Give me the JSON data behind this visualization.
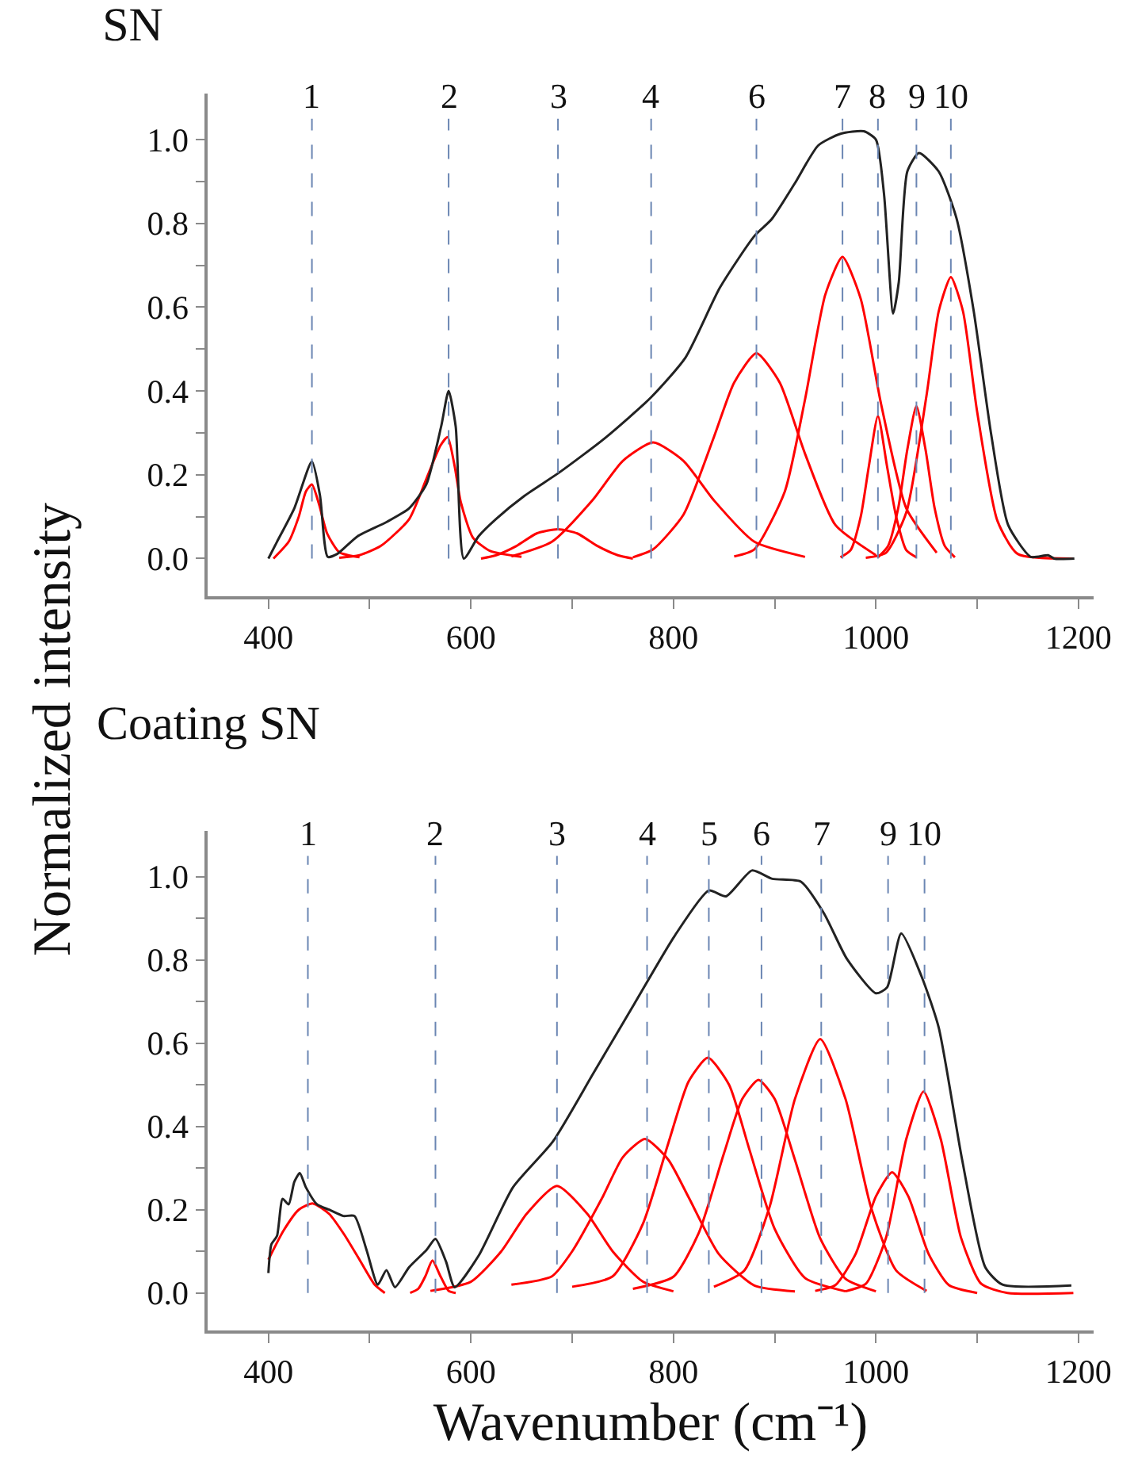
{
  "chart_data": [
    {
      "type": "line",
      "title": "SN",
      "ylabel": "Normalized intensity",
      "xlim": [
        340,
        1215
      ],
      "ylim": [
        -0.09,
        1.11
      ],
      "xticks": [
        400,
        {
          "value": 500,
          "label": null
        },
        600,
        {
          "value": 700,
          "label": null
        },
        800,
        {
          "value": 900,
          "label": null
        },
        1000,
        {
          "value": 1100,
          "label": null
        },
        1200
      ],
      "yticks": [
        {
          "value": 0,
          "label": "0.0"
        },
        {
          "value": 0.1,
          "label": null
        },
        {
          "value": 0.2,
          "label": "0.2"
        },
        {
          "value": 0.3,
          "label": null
        },
        {
          "value": 0.4,
          "label": "0.4"
        },
        {
          "value": 0.5,
          "label": null
        },
        {
          "value": 0.6,
          "label": "0.6"
        },
        {
          "value": 0.7,
          "label": null
        },
        {
          "value": 0.8,
          "label": "0.8"
        },
        {
          "value": 0.9,
          "label": null
        },
        {
          "value": 1.0,
          "label": "1.0"
        }
      ],
      "grid": false,
      "series": [
        {
          "color": "#ff0000",
          "x": [
            405,
            420,
            430,
            437,
            443,
            450,
            458,
            470,
            490
          ],
          "values": [
            0,
            0.04,
            0.1,
            0.16,
            0.177,
            0.13,
            0.06,
            0.015,
            0.003
          ]
        },
        {
          "color": "#ff0000",
          "x": [
            470,
            490,
            511,
            539,
            556,
            570,
            577,
            584,
            590,
            602,
            619,
            650
          ],
          "values": [
            0.002,
            0.008,
            0.03,
            0.094,
            0.19,
            0.27,
            0.29,
            0.22,
            0.135,
            0.05,
            0.018,
            0.004
          ]
        },
        {
          "color": "#ff0000",
          "x": [
            610,
            625,
            645,
            665,
            686,
            705,
            725,
            745,
            760
          ],
          "values": [
            0,
            0.008,
            0.03,
            0.06,
            0.07,
            0.06,
            0.03,
            0.008,
            0
          ]
        },
        {
          "color": "#ff0000",
          "x": [
            640,
            680,
            720,
            750,
            780,
            810,
            840,
            880,
            930
          ],
          "values": [
            0.005,
            0.04,
            0.139,
            0.233,
            0.277,
            0.233,
            0.139,
            0.04,
            0.004
          ]
        },
        {
          "color": "#ff0000",
          "x": [
            760,
            780,
            810,
            840,
            860,
            882,
            905,
            930,
            960,
            1000
          ],
          "values": [
            0.003,
            0.022,
            0.105,
            0.29,
            0.42,
            0.49,
            0.42,
            0.25,
            0.08,
            0.008
          ]
        },
        {
          "color": "#ff0000",
          "x": [
            860,
            880,
            910,
            930,
            950,
            967,
            985,
            1005,
            1030,
            1060
          ],
          "values": [
            0.005,
            0.022,
            0.16,
            0.38,
            0.63,
            0.72,
            0.62,
            0.37,
            0.12,
            0.014
          ]
        },
        {
          "color": "#ff0000",
          "x": [
            965,
            975,
            985,
            993,
            1002,
            1011,
            1020,
            1030,
            1040
          ],
          "values": [
            0.003,
            0.02,
            0.1,
            0.22,
            0.34,
            0.22,
            0.1,
            0.02,
            0.003
          ]
        },
        {
          "color": "#ff0000",
          "x": [
            1002,
            1012,
            1022,
            1031,
            1040,
            1049,
            1058,
            1068,
            1078
          ],
          "values": [
            0.003,
            0.03,
            0.12,
            0.26,
            0.364,
            0.26,
            0.12,
            0.03,
            0.003
          ]
        },
        {
          "color": "#ff0000",
          "x": [
            990,
            1010,
            1030,
            1050,
            1062,
            1074,
            1086,
            1100,
            1120,
            1140,
            1195
          ],
          "values": [
            0.002,
            0.014,
            0.11,
            0.39,
            0.59,
            0.672,
            0.59,
            0.35,
            0.09,
            0.011,
            0
          ]
        },
        {
          "color": "#222222",
          "x": [
            400,
            408.5,
            425.6,
            443,
            451,
            458.6,
            468,
            488,
            516.6,
            539,
            556,
            570.6,
            578,
            585,
            593,
            607.5,
            624.6,
            653,
            687,
            732.6,
            778,
            812,
            846,
            880,
            897,
            920,
            943,
            965,
            988,
            1000,
            1008,
            1017,
            1022.6,
            1031,
            1042.5,
            1062,
            1079.5,
            1096.5,
            1113.6,
            1130.6,
            1153,
            1170,
            1176,
            1196
          ],
          "values": [
            0,
            0.04,
            0.12,
            0.232,
            0.15,
            0.004,
            0.011,
            0.053,
            0.087,
            0.12,
            0.177,
            0.315,
            0.4,
            0.315,
            0,
            0.053,
            0.094,
            0.15,
            0.205,
            0.288,
            0.385,
            0.48,
            0.647,
            0.77,
            0.81,
            0.896,
            0.986,
            1.014,
            1.02,
            1.0,
            0.87,
            0.585,
            0.66,
            0.924,
            0.968,
            0.924,
            0.813,
            0.592,
            0.3,
            0.08,
            0.004,
            0.008,
            0,
            0
          ]
        }
      ],
      "ref_lines": [
        {
          "axis": "x",
          "value": 443,
          "color": "#6b86b3",
          "line_style": "dashed"
        },
        {
          "axis": "x",
          "value": 578,
          "color": "#6b86b3",
          "line_style": "dashed"
        },
        {
          "axis": "x",
          "value": 686,
          "color": "#6b86b3",
          "line_style": "dashed"
        },
        {
          "axis": "x",
          "value": 778,
          "color": "#6b86b3",
          "line_style": "dashed"
        },
        {
          "axis": "x",
          "value": 882,
          "color": "#6b86b3",
          "line_style": "dashed"
        },
        {
          "axis": "x",
          "value": 967,
          "color": "#6b86b3",
          "line_style": "dashed"
        },
        {
          "axis": "x",
          "value": 1002,
          "color": "#6b86b3",
          "line_style": "dashed"
        },
        {
          "axis": "x",
          "value": 1040,
          "color": "#6b86b3",
          "line_style": "dashed"
        },
        {
          "axis": "x",
          "value": 1074,
          "color": "#6b86b3",
          "line_style": "dashed"
        }
      ],
      "annotations": [
        {
          "text": "1",
          "x": 443,
          "y": 1.05
        },
        {
          "text": "2",
          "x": 578,
          "y": 1.05
        },
        {
          "text": "3",
          "x": 686,
          "y": 1.05
        },
        {
          "text": "4",
          "x": 778,
          "y": 1.05
        },
        {
          "text": "6",
          "x": 882,
          "y": 1.05
        },
        {
          "text": "7",
          "x": 967,
          "y": 1.05
        },
        {
          "text": "8",
          "x": 1002,
          "y": 1.05
        },
        {
          "text": "9",
          "x": 1040,
          "y": 1.05
        },
        {
          "text": "10",
          "x": 1074,
          "y": 1.05
        }
      ]
    },
    {
      "type": "line",
      "title": "Coating SN",
      "xlabel": "Wavenumber (cm⁻¹)",
      "xlim": [
        340,
        1215
      ],
      "ylim": [
        -0.09,
        1.11
      ],
      "xticks": [
        400,
        {
          "value": 500,
          "label": null
        },
        600,
        {
          "value": 700,
          "label": null
        },
        800,
        {
          "value": 900,
          "label": null
        },
        1000,
        {
          "value": 1100,
          "label": null
        },
        1200
      ],
      "yticks": [
        {
          "value": 0,
          "label": "0.0"
        },
        {
          "value": 0.1,
          "label": null
        },
        {
          "value": 0.2,
          "label": "0.2"
        },
        {
          "value": 0.3,
          "label": null
        },
        {
          "value": 0.4,
          "label": "0.4"
        },
        {
          "value": 0.5,
          "label": null
        },
        {
          "value": 0.6,
          "label": "0.6"
        },
        {
          "value": 0.7,
          "label": null
        },
        {
          "value": 0.8,
          "label": "0.8"
        },
        {
          "value": 0.9,
          "label": null
        },
        {
          "value": 1.0,
          "label": "1.0"
        }
      ],
      "grid": false,
      "series": [
        {
          "color": "#ff0000",
          "x": [
            400,
            415,
            430,
            444,
            460,
            475,
            490,
            505,
            515
          ],
          "values": [
            0.08,
            0.15,
            0.2,
            0.215,
            0.19,
            0.14,
            0.08,
            0.02,
            0
          ]
        },
        {
          "color": "#ff0000",
          "x": [
            540,
            548,
            555,
            562,
            570,
            578,
            585
          ],
          "values": [
            0,
            0.01,
            0.04,
            0.078,
            0.04,
            0.005,
            0
          ]
        },
        {
          "color": "#ff0000",
          "x": [
            560,
            600,
            630,
            655,
            685,
            715,
            740,
            770,
            800
          ],
          "values": [
            0.005,
            0.027,
            0.1,
            0.19,
            0.257,
            0.19,
            0.1,
            0.027,
            0.004
          ]
        },
        {
          "color": "#ff0000",
          "x": [
            640,
            680,
            700,
            730,
            750,
            772,
            795,
            815,
            845,
            880,
            920
          ],
          "values": [
            0.02,
            0.04,
            0.1,
            0.23,
            0.326,
            0.37,
            0.32,
            0.23,
            0.093,
            0.018,
            0.004
          ]
        },
        {
          "color": "#ff0000",
          "x": [
            700,
            740,
            770,
            795,
            815,
            834,
            855,
            875,
            900,
            930,
            970
          ],
          "values": [
            0.015,
            0.04,
            0.167,
            0.36,
            0.508,
            0.565,
            0.5,
            0.345,
            0.154,
            0.036,
            0.004
          ]
        },
        {
          "color": "#ff0000",
          "x": [
            760,
            800,
            825,
            850,
            868,
            884,
            900,
            920,
            945,
            970,
            1000
          ],
          "values": [
            0.01,
            0.039,
            0.144,
            0.336,
            0.466,
            0.512,
            0.466,
            0.32,
            0.131,
            0.034,
            0.004
          ]
        },
        {
          "color": "#ff0000",
          "x": [
            840,
            870,
            895,
            920,
            945,
            970,
            995,
            1020,
            1050
          ],
          "values": [
            0.015,
            0.054,
            0.207,
            0.466,
            0.61,
            0.466,
            0.207,
            0.054,
            0.005
          ]
        },
        {
          "color": "#ff0000",
          "x": [
            940,
            960,
            980,
            1000,
            1016,
            1032,
            1052,
            1072,
            1100
          ],
          "values": [
            0.005,
            0.019,
            0.094,
            0.232,
            0.29,
            0.232,
            0.094,
            0.019,
            0
          ]
        },
        {
          "color": "#ff0000",
          "x": [
            970,
            990,
            1010,
            1030,
            1047,
            1064,
            1084,
            1104,
            1130,
            1195
          ],
          "values": [
            0.004,
            0.022,
            0.133,
            0.37,
            0.484,
            0.37,
            0.133,
            0.022,
            0,
            0
          ]
        },
        {
          "color": "#222222",
          "x": [
            400,
            403,
            408.5,
            414,
            420,
            425.6,
            431,
            437,
            448,
            460,
            474,
            485,
            497,
            508,
            516.6,
            525,
            539,
            556,
            565,
            575.5,
            584,
            607.5,
            641.6,
            681,
            721,
            761,
            801,
            835,
            852,
            877.6,
            897.6,
            925.9,
            948.7,
            971.5,
            1000,
            1011,
            1025,
            1045,
            1062,
            1085,
            1108,
            1125,
            1193
          ],
          "values": [
            0.048,
            0.117,
            0.137,
            0.226,
            0.213,
            0.267,
            0.288,
            0.254,
            0.213,
            0.2,
            0.185,
            0.185,
            0.103,
            0.02,
            0.055,
            0.014,
            0.062,
            0.103,
            0.13,
            0.075,
            0.014,
            0.089,
            0.254,
            0.364,
            0.528,
            0.693,
            0.857,
            0.967,
            0.953,
            1.015,
            0.995,
            0.988,
            0.912,
            0.802,
            0.72,
            0.734,
            0.864,
            0.761,
            0.638,
            0.322,
            0.062,
            0.02,
            0.018
          ]
        }
      ],
      "ref_lines": [
        {
          "axis": "x",
          "value": 439,
          "color": "#6b86b3",
          "line_style": "dashed"
        },
        {
          "axis": "x",
          "value": 565,
          "color": "#6b86b3",
          "line_style": "dashed"
        },
        {
          "axis": "x",
          "value": 685,
          "color": "#6b86b3",
          "line_style": "dashed"
        },
        {
          "axis": "x",
          "value": 774,
          "color": "#6b86b3",
          "line_style": "dashed"
        },
        {
          "axis": "x",
          "value": 835,
          "color": "#6b86b3",
          "line_style": "dashed"
        },
        {
          "axis": "x",
          "value": 887,
          "color": "#6b86b3",
          "line_style": "dashed"
        },
        {
          "axis": "x",
          "value": 946,
          "color": "#6b86b3",
          "line_style": "dashed"
        },
        {
          "axis": "x",
          "value": 1012,
          "color": "#6b86b3",
          "line_style": "dashed"
        },
        {
          "axis": "x",
          "value": 1048,
          "color": "#6b86b3",
          "line_style": "dashed"
        }
      ],
      "annotations": [
        {
          "text": "1",
          "x": 439,
          "y": 1.05
        },
        {
          "text": "2",
          "x": 565,
          "y": 1.05
        },
        {
          "text": "3",
          "x": 685,
          "y": 1.05
        },
        {
          "text": "4",
          "x": 774,
          "y": 1.05
        },
        {
          "text": "5",
          "x": 835,
          "y": 1.05
        },
        {
          "text": "6",
          "x": 887,
          "y": 1.05
        },
        {
          "text": "7",
          "x": 946,
          "y": 1.05
        },
        {
          "text": "9",
          "x": 1012,
          "y": 1.05
        },
        {
          "text": "10",
          "x": 1048,
          "y": 1.05
        }
      ]
    }
  ]
}
